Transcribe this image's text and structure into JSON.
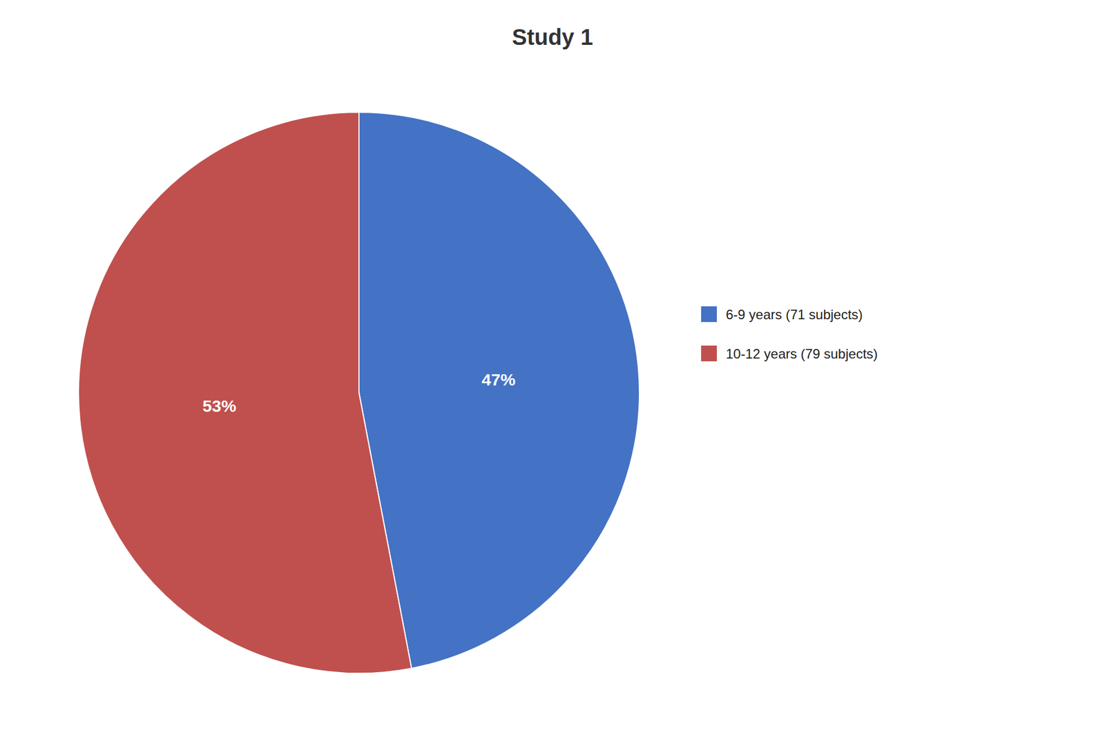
{
  "chart_data": {
    "type": "pie",
    "title": "Study 1",
    "categories": [
      "6-9 years (71 subjects)",
      "10-12 years (79 subjects)"
    ],
    "values": [
      47,
      53
    ],
    "value_labels": [
      "47%",
      "53%"
    ],
    "colors": [
      "#4472C4",
      "#C0504D"
    ],
    "data_labels": true,
    "legend": "right"
  }
}
